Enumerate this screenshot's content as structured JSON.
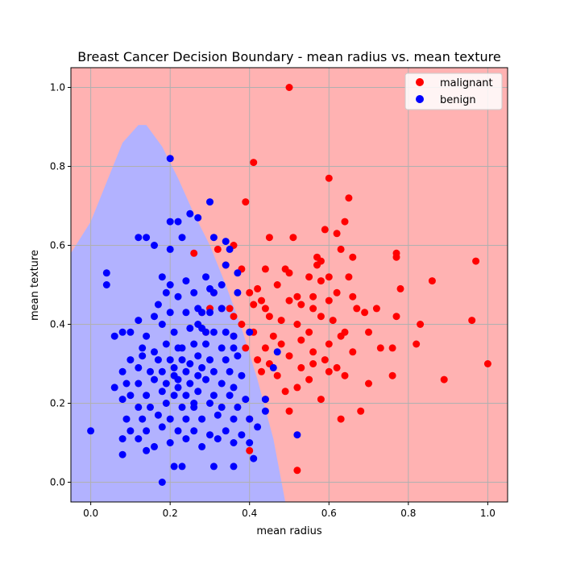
{
  "chart_data": {
    "type": "scatter",
    "title": "Breast Cancer Decision Boundary - mean radius vs. mean texture",
    "xlabel": "mean radius",
    "ylabel": "mean texture",
    "xlim": [
      -0.05,
      1.05
    ],
    "ylim": [
      -0.05,
      1.05
    ],
    "xticks": [
      "0.0",
      "0.2",
      "0.4",
      "0.6",
      "0.8",
      "1.0"
    ],
    "yticks": [
      "0.0",
      "0.2",
      "0.4",
      "0.6",
      "0.8",
      "1.0"
    ],
    "grid": true,
    "legend_position": "top-right",
    "regions": [
      {
        "label": "malignant region",
        "color": "#ffb2b2"
      },
      {
        "label": "benign region",
        "color": "#b2b2ff",
        "boundary": [
          [
            -0.05,
            0.58
          ],
          [
            0.0,
            0.66
          ],
          [
            0.04,
            0.76
          ],
          [
            0.08,
            0.86
          ],
          [
            0.12,
            0.905
          ],
          [
            0.14,
            0.905
          ],
          [
            0.18,
            0.85
          ],
          [
            0.22,
            0.77
          ],
          [
            0.26,
            0.68
          ],
          [
            0.3,
            0.6
          ],
          [
            0.34,
            0.5
          ],
          [
            0.38,
            0.39
          ],
          [
            0.42,
            0.26
          ],
          [
            0.46,
            0.11
          ],
          [
            0.49,
            -0.05
          ]
        ]
      }
    ],
    "series": [
      {
        "name": "malignant",
        "color": "#ff0000",
        "points": [
          [
            0.5,
            1.0
          ],
          [
            0.41,
            0.81
          ],
          [
            0.6,
            0.77
          ],
          [
            0.39,
            0.71
          ],
          [
            0.65,
            0.72
          ],
          [
            0.64,
            0.66
          ],
          [
            0.59,
            0.64
          ],
          [
            0.62,
            0.63
          ],
          [
            0.45,
            0.62
          ],
          [
            0.51,
            0.62
          ],
          [
            0.36,
            0.6
          ],
          [
            0.63,
            0.59
          ],
          [
            0.66,
            0.57
          ],
          [
            0.77,
            0.58
          ],
          [
            0.77,
            0.57
          ],
          [
            0.57,
            0.57
          ],
          [
            0.58,
            0.56
          ],
          [
            0.97,
            0.56
          ],
          [
            0.57,
            0.55
          ],
          [
            0.44,
            0.54
          ],
          [
            0.49,
            0.54
          ],
          [
            0.5,
            0.53
          ],
          [
            0.38,
            0.54
          ],
          [
            0.58,
            0.51
          ],
          [
            0.6,
            0.52
          ],
          [
            0.55,
            0.52
          ],
          [
            0.65,
            0.52
          ],
          [
            0.86,
            0.51
          ],
          [
            0.47,
            0.5
          ],
          [
            0.42,
            0.49
          ],
          [
            0.62,
            0.48
          ],
          [
            0.78,
            0.49
          ],
          [
            0.52,
            0.47
          ],
          [
            0.56,
            0.47
          ],
          [
            0.4,
            0.48
          ],
          [
            0.66,
            0.47
          ],
          [
            0.5,
            0.46
          ],
          [
            0.53,
            0.45
          ],
          [
            0.6,
            0.46
          ],
          [
            0.41,
            0.45
          ],
          [
            0.43,
            0.46
          ],
          [
            0.35,
            0.44
          ],
          [
            0.36,
            0.42
          ],
          [
            0.44,
            0.44
          ],
          [
            0.56,
            0.44
          ],
          [
            0.67,
            0.44
          ],
          [
            0.72,
            0.44
          ],
          [
            0.45,
            0.42
          ],
          [
            0.58,
            0.42
          ],
          [
            0.69,
            0.43
          ],
          [
            0.77,
            0.42
          ],
          [
            0.61,
            0.41
          ],
          [
            0.83,
            0.4
          ],
          [
            0.96,
            0.41
          ],
          [
            0.48,
            0.41
          ],
          [
            0.52,
            0.4
          ],
          [
            0.41,
            0.38
          ],
          [
            0.55,
            0.38
          ],
          [
            0.64,
            0.38
          ],
          [
            0.7,
            0.38
          ],
          [
            0.46,
            0.37
          ],
          [
            0.53,
            0.36
          ],
          [
            0.6,
            0.35
          ],
          [
            0.63,
            0.37
          ],
          [
            0.44,
            0.34
          ],
          [
            0.48,
            0.35
          ],
          [
            0.39,
            0.34
          ],
          [
            0.56,
            0.33
          ],
          [
            0.73,
            0.34
          ],
          [
            0.76,
            0.34
          ],
          [
            0.82,
            0.35
          ],
          [
            0.66,
            0.33
          ],
          [
            0.5,
            0.32
          ],
          [
            0.59,
            0.31
          ],
          [
            0.42,
            0.31
          ],
          [
            0.45,
            0.3
          ],
          [
            0.62,
            0.29
          ],
          [
            0.53,
            0.29
          ],
          [
            0.56,
            0.3
          ],
          [
            0.6,
            0.28
          ],
          [
            0.43,
            0.28
          ],
          [
            0.47,
            0.27
          ],
          [
            0.64,
            0.27
          ],
          [
            0.55,
            0.26
          ],
          [
            0.7,
            0.25
          ],
          [
            0.89,
            0.26
          ],
          [
            0.76,
            0.27
          ],
          [
            1.0,
            0.3
          ],
          [
            0.49,
            0.23
          ],
          [
            0.52,
            0.24
          ],
          [
            0.58,
            0.21
          ],
          [
            0.44,
            0.21
          ],
          [
            0.5,
            0.18
          ],
          [
            0.68,
            0.18
          ],
          [
            0.63,
            0.16
          ],
          [
            0.4,
            0.08
          ],
          [
            0.52,
            0.03
          ],
          [
            0.4,
            0.16
          ],
          [
            0.38,
            0.4
          ],
          [
            0.33,
            0.44
          ],
          [
            0.31,
            0.48
          ],
          [
            0.3,
            0.44
          ],
          [
            0.28,
            0.43
          ],
          [
            0.32,
            0.59
          ],
          [
            0.26,
            0.58
          ],
          [
            0.34,
            0.55
          ],
          [
            0.29,
            0.38
          ],
          [
            0.36,
            0.37
          ]
        ]
      },
      {
        "name": "benign",
        "color": "#0000ff",
        "points": [
          [
            0.2,
            0.82
          ],
          [
            0.3,
            0.71
          ],
          [
            0.2,
            0.66
          ],
          [
            0.22,
            0.66
          ],
          [
            0.25,
            0.68
          ],
          [
            0.12,
            0.62
          ],
          [
            0.14,
            0.62
          ],
          [
            0.16,
            0.6
          ],
          [
            0.2,
            0.59
          ],
          [
            0.31,
            0.62
          ],
          [
            0.34,
            0.61
          ],
          [
            0.23,
            0.62
          ],
          [
            0.27,
            0.67
          ],
          [
            0.04,
            0.53
          ],
          [
            0.04,
            0.5
          ],
          [
            0.18,
            0.52
          ],
          [
            0.2,
            0.5
          ],
          [
            0.24,
            0.51
          ],
          [
            0.29,
            0.52
          ],
          [
            0.19,
            0.48
          ],
          [
            0.22,
            0.47
          ],
          [
            0.17,
            0.45
          ],
          [
            0.26,
            0.48
          ],
          [
            0.33,
            0.5
          ],
          [
            0.3,
            0.49
          ],
          [
            0.37,
            0.48
          ],
          [
            0.16,
            0.42
          ],
          [
            0.18,
            0.4
          ],
          [
            0.2,
            0.43
          ],
          [
            0.24,
            0.43
          ],
          [
            0.27,
            0.44
          ],
          [
            0.3,
            0.43
          ],
          [
            0.12,
            0.41
          ],
          [
            0.08,
            0.38
          ],
          [
            0.06,
            0.37
          ],
          [
            0.1,
            0.38
          ],
          [
            0.14,
            0.37
          ],
          [
            0.21,
            0.38
          ],
          [
            0.25,
            0.39
          ],
          [
            0.28,
            0.39
          ],
          [
            0.31,
            0.38
          ],
          [
            0.34,
            0.38
          ],
          [
            0.13,
            0.34
          ],
          [
            0.16,
            0.33
          ],
          [
            0.19,
            0.35
          ],
          [
            0.22,
            0.34
          ],
          [
            0.26,
            0.35
          ],
          [
            0.29,
            0.35
          ],
          [
            0.33,
            0.34
          ],
          [
            0.36,
            0.34
          ],
          [
            0.1,
            0.31
          ],
          [
            0.13,
            0.32
          ],
          [
            0.17,
            0.31
          ],
          [
            0.2,
            0.31
          ],
          [
            0.23,
            0.31
          ],
          [
            0.27,
            0.32
          ],
          [
            0.3,
            0.31
          ],
          [
            0.34,
            0.31
          ],
          [
            0.37,
            0.32
          ],
          [
            0.08,
            0.28
          ],
          [
            0.12,
            0.29
          ],
          [
            0.15,
            0.28
          ],
          [
            0.18,
            0.28
          ],
          [
            0.21,
            0.29
          ],
          [
            0.24,
            0.28
          ],
          [
            0.28,
            0.29
          ],
          [
            0.31,
            0.28
          ],
          [
            0.35,
            0.28
          ],
          [
            0.38,
            0.27
          ],
          [
            0.09,
            0.25
          ],
          [
            0.12,
            0.25
          ],
          [
            0.16,
            0.26
          ],
          [
            0.19,
            0.25
          ],
          [
            0.22,
            0.26
          ],
          [
            0.25,
            0.25
          ],
          [
            0.29,
            0.26
          ],
          [
            0.33,
            0.25
          ],
          [
            0.36,
            0.24
          ],
          [
            0.06,
            0.24
          ],
          [
            0.1,
            0.22
          ],
          [
            0.14,
            0.22
          ],
          [
            0.18,
            0.23
          ],
          [
            0.21,
            0.22
          ],
          [
            0.24,
            0.22
          ],
          [
            0.27,
            0.23
          ],
          [
            0.31,
            0.22
          ],
          [
            0.35,
            0.22
          ],
          [
            0.39,
            0.21
          ],
          [
            0.08,
            0.21
          ],
          [
            0.12,
            0.19
          ],
          [
            0.15,
            0.19
          ],
          [
            0.19,
            0.2
          ],
          [
            0.23,
            0.19
          ],
          [
            0.26,
            0.19
          ],
          [
            0.3,
            0.2
          ],
          [
            0.33,
            0.19
          ],
          [
            0.37,
            0.19
          ],
          [
            0.09,
            0.16
          ],
          [
            0.13,
            0.16
          ],
          [
            0.17,
            0.17
          ],
          [
            0.2,
            0.16
          ],
          [
            0.24,
            0.16
          ],
          [
            0.28,
            0.16
          ],
          [
            0.32,
            0.17
          ],
          [
            0.36,
            0.16
          ],
          [
            0.4,
            0.16
          ],
          [
            0.1,
            0.13
          ],
          [
            0.14,
            0.13
          ],
          [
            0.18,
            0.14
          ],
          [
            0.22,
            0.13
          ],
          [
            0.26,
            0.13
          ],
          [
            0.3,
            0.12
          ],
          [
            0.34,
            0.13
          ],
          [
            0.38,
            0.12
          ],
          [
            0.42,
            0.14
          ],
          [
            0.08,
            0.11
          ],
          [
            0.12,
            0.11
          ],
          [
            0.16,
            0.09
          ],
          [
            0.2,
            0.1
          ],
          [
            0.24,
            0.11
          ],
          [
            0.28,
            0.09
          ],
          [
            0.32,
            0.11
          ],
          [
            0.36,
            0.1
          ],
          [
            0.4,
            0.1
          ],
          [
            0.0,
            0.13
          ],
          [
            0.08,
            0.07
          ],
          [
            0.14,
            0.08
          ],
          [
            0.21,
            0.04
          ],
          [
            0.23,
            0.04
          ],
          [
            0.31,
            0.04
          ],
          [
            0.36,
            0.04
          ],
          [
            0.41,
            0.06
          ],
          [
            0.18,
            0.0
          ],
          [
            0.44,
            0.21
          ],
          [
            0.46,
            0.29
          ],
          [
            0.52,
            0.12
          ],
          [
            0.44,
            0.18
          ],
          [
            0.47,
            0.33
          ],
          [
            0.4,
            0.38
          ],
          [
            0.33,
            0.44
          ],
          [
            0.31,
            0.48
          ],
          [
            0.28,
            0.43
          ],
          [
            0.34,
            0.55
          ],
          [
            0.35,
            0.59
          ],
          [
            0.37,
            0.53
          ],
          [
            0.29,
            0.38
          ],
          [
            0.36,
            0.37
          ],
          [
            0.27,
            0.4
          ],
          [
            0.25,
            0.3
          ],
          [
            0.22,
            0.24
          ],
          [
            0.26,
            0.2
          ],
          [
            0.27,
            0.27
          ],
          [
            0.23,
            0.34
          ],
          [
            0.21,
            0.27
          ]
        ]
      }
    ]
  }
}
